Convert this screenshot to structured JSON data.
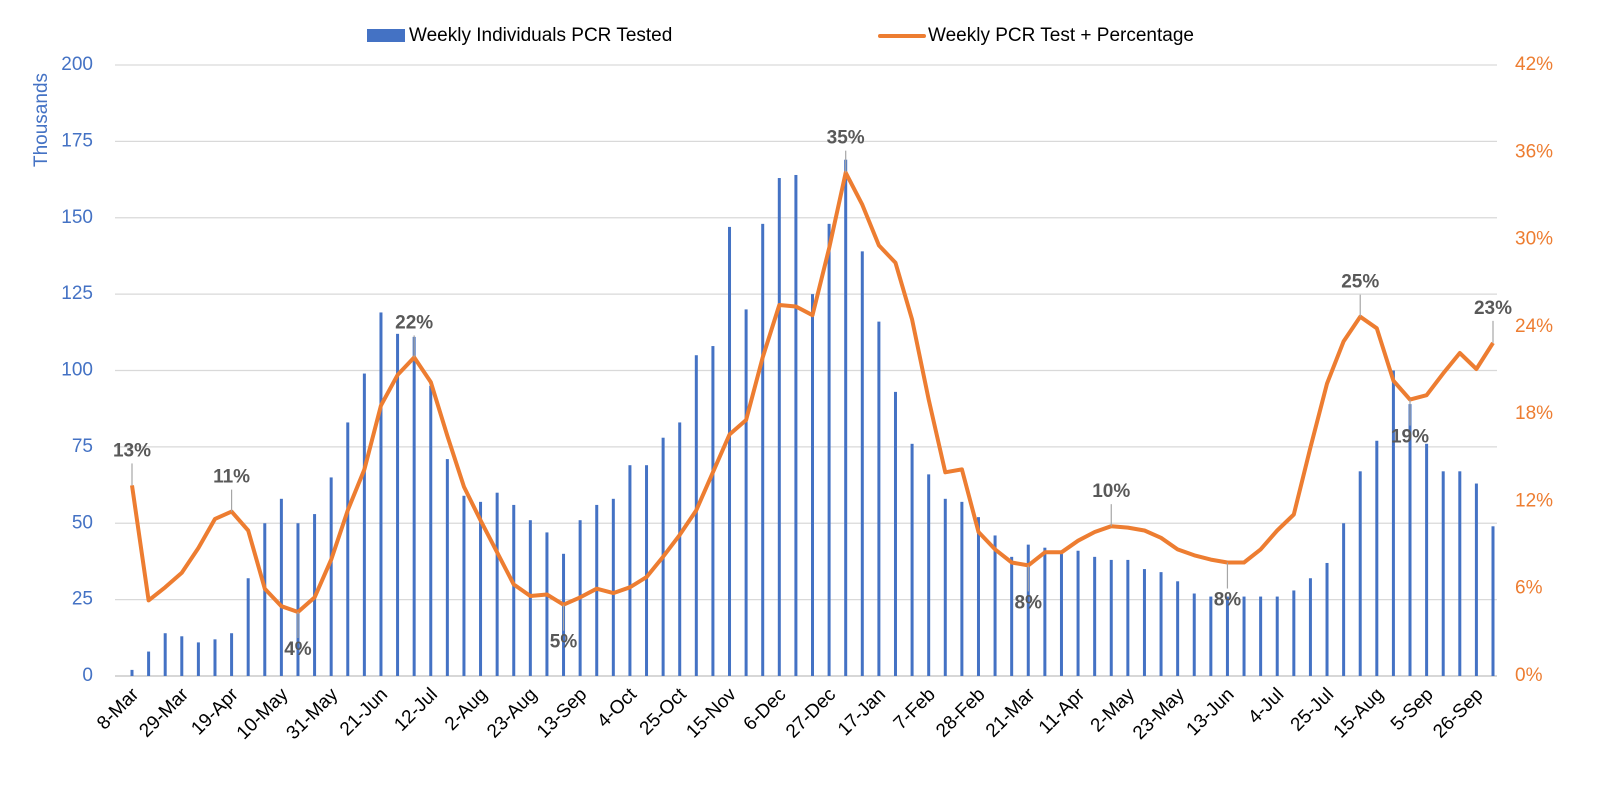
{
  "chart_data": {
    "type": "bar_line",
    "categories": [
      "8-Mar",
      null,
      null,
      "29-Mar",
      null,
      null,
      "19-Apr",
      null,
      null,
      "10-May",
      null,
      null,
      "31-May",
      null,
      null,
      "21-Jun",
      null,
      null,
      "12-Jul",
      null,
      null,
      "2-Aug",
      null,
      null,
      "23-Aug",
      null,
      null,
      "13-Sep",
      null,
      null,
      "4-Oct",
      null,
      null,
      "25-Oct",
      null,
      null,
      "15-Nov",
      null,
      null,
      "6-Dec",
      null,
      null,
      "27-Dec",
      null,
      null,
      "17-Jan",
      null,
      null,
      "7-Feb",
      null,
      null,
      "28-Feb",
      null,
      null,
      "21-Mar",
      null,
      null,
      "11-Apr",
      null,
      null,
      "2-May",
      null,
      null,
      "23-May",
      null,
      null,
      "13-Jun",
      null,
      null,
      "4-Jul",
      null,
      null,
      "25-Jul",
      null,
      null,
      "15-Aug",
      null,
      null,
      "5-Sep",
      null,
      null,
      "26-Sep",
      null
    ],
    "ylabel": "Thousands",
    "ylim": [
      0,
      200
    ],
    "yticks": [
      0,
      25,
      50,
      75,
      100,
      125,
      150,
      175,
      200
    ],
    "y2lim": [
      0,
      42
    ],
    "y2ticks": [
      {
        "value": 0,
        "label": "0%"
      },
      {
        "value": 6,
        "label": "6%"
      },
      {
        "value": 12,
        "label": "12%"
      },
      {
        "value": 18,
        "label": "18%"
      },
      {
        "value": 24,
        "label": "24%"
      },
      {
        "value": 30,
        "label": "30%"
      },
      {
        "value": 36,
        "label": "36%"
      },
      {
        "value": 42,
        "label": "42%"
      }
    ],
    "grid": true,
    "legend": "top",
    "series": [
      {
        "name": "Weekly Individuals PCR Tested",
        "type": "bar",
        "color": "#4472c4",
        "values": [
          2,
          8,
          14,
          13,
          11,
          12,
          14,
          32,
          50,
          58,
          50,
          53,
          65,
          83,
          99,
          119,
          112,
          111,
          95,
          71,
          59,
          57,
          60,
          56,
          51,
          47,
          40,
          51,
          56,
          58,
          69,
          69,
          78,
          83,
          105,
          108,
          147,
          120,
          148,
          163,
          164,
          125,
          148,
          169,
          139,
          116,
          93,
          76,
          66,
          58,
          57,
          52,
          46,
          39,
          43,
          42,
          40,
          41,
          39,
          38,
          38,
          35,
          34,
          31,
          27,
          26,
          26,
          26,
          26,
          26,
          28,
          32,
          37,
          50,
          67,
          77,
          100,
          89,
          76,
          67,
          67,
          63,
          49
        ]
      },
      {
        "name": "Weekly PCR Test + Percentage",
        "type": "line",
        "axis": "y2",
        "color": "#ed7d31",
        "values": [
          13.1,
          5.2,
          6.1,
          7.1,
          8.8,
          10.8,
          11.3,
          10.0,
          6.0,
          4.8,
          4.4,
          5.4,
          8.0,
          11.4,
          14.2,
          18.6,
          20.7,
          21.9,
          20.2,
          16.5,
          13.0,
          10.7,
          8.5,
          6.3,
          5.5,
          5.6,
          4.9,
          5.4,
          6.0,
          5.7,
          6.1,
          6.8,
          8.2,
          9.7,
          11.4,
          14.0,
          16.6,
          17.6,
          21.9,
          25.5,
          25.4,
          24.8,
          29.4,
          34.6,
          32.4,
          29.6,
          28.4,
          24.5,
          19.0,
          14.0,
          14.2,
          9.9,
          8.7,
          7.8,
          7.6,
          8.5,
          8.5,
          9.3,
          9.9,
          10.3,
          10.2,
          10.0,
          9.5,
          8.7,
          8.3,
          8.0,
          7.8,
          7.8,
          8.7,
          10.0,
          11.1,
          15.7,
          20.1,
          23.0,
          24.7,
          23.9,
          20.3,
          19.0,
          19.3,
          20.8,
          22.2,
          21.1,
          22.9
        ],
        "value_labels": [
          "13%",
          null,
          null,
          null,
          null,
          null,
          "11%",
          null,
          null,
          null,
          "4%",
          null,
          null,
          null,
          null,
          null,
          null,
          "22%",
          null,
          null,
          null,
          null,
          null,
          null,
          null,
          null,
          "5%",
          null,
          null,
          null,
          null,
          null,
          null,
          null,
          null,
          null,
          null,
          null,
          null,
          null,
          null,
          null,
          null,
          "35%",
          null,
          null,
          null,
          null,
          null,
          null,
          null,
          null,
          null,
          null,
          "8%",
          null,
          null,
          null,
          null,
          "10%",
          null,
          null,
          null,
          null,
          null,
          null,
          "8%",
          null,
          null,
          null,
          null,
          null,
          null,
          null,
          "25%",
          null,
          null,
          "19%",
          null,
          null,
          null,
          null,
          "23%"
        ]
      }
    ]
  }
}
